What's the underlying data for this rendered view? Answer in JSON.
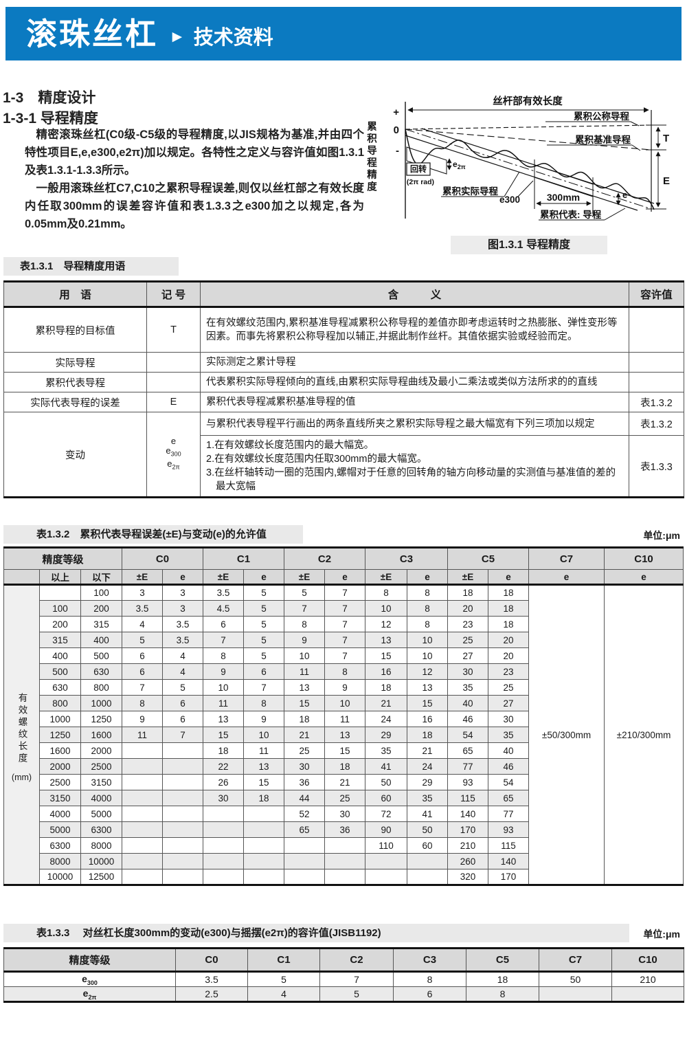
{
  "banner": {
    "title": "滚珠丝杠",
    "arrow": "►",
    "subtitle": "技术资料",
    "bg": "#0b7ac1"
  },
  "headings": {
    "h1": "1-3　精度设计",
    "h2": "1-3-1 导程精度"
  },
  "intro": {
    "p1": "精密滚珠丝杠(C0级-C5级的导程精度,以JIS规格为基准,并由四个特性项目E,e,e300,e2π)加以规定。各特性之定义与容许值如图1.3.1及表1.3.1-1.3.3所示。",
    "p2": "一般用滚珠丝杠C7,C10之累积导程误差,则仅以丝杠部之有效长度内任取300mm的误差容许值和表1.3.3之e300加之以规定,各为0.05mm及0.21mm。"
  },
  "figure": {
    "caption": "图1.3.1 导程精度",
    "labels": {
      "effective_length": "丝杆部有效长度",
      "y_axis": "累积导程精度",
      "plus": "+",
      "zero": "0",
      "minus": "-",
      "nominal": "累积公称导程",
      "reference": "累积基准导程",
      "actual": "累积实际导程",
      "representative": "累积代表: 导程",
      "rotation": "回转",
      "rotation_unit": "(2π rad)",
      "e2pi_base": "e",
      "e2pi_sub": "2π",
      "e300": "e300",
      "mm300": "300mm",
      "e": "e",
      "T": "T",
      "E": "E"
    }
  },
  "table131": {
    "title": "表1.3.1　导程精度用语",
    "headers": [
      "用　语",
      "记 号",
      "含　　　义",
      "容许值"
    ],
    "rows": [
      {
        "term": "累积导程的目标值",
        "symbol": "T",
        "meaning": "在有效螺纹范围内,累积基准导程减累积公称导程的差值亦即考虑运转时之热膨胀、弹性变形等因素。而事先将累积公称导程加以辅正,并据此制作丝杆。其值依据实验或经验而定。",
        "tolerance": ""
      },
      {
        "term": "实际导程",
        "symbol": "",
        "meaning": "实际测定之累计导程",
        "tolerance": ""
      },
      {
        "term": "累积代表导程",
        "symbol": "",
        "meaning": "代表累积实际导程倾向的直线,由累积实际导程曲线及最小二乘法或类似方法所求的的直线",
        "tolerance": ""
      },
      {
        "term": "实际代表导程的误差",
        "symbol": "E",
        "meaning": "累积代表导程减累积基准导程的值",
        "tolerance": "表1.3.2"
      }
    ],
    "variation_row": {
      "term": "变动",
      "symbols": [
        {
          "b": "e",
          "s": ""
        },
        {
          "b": "e",
          "s": "300"
        },
        {
          "b": "e",
          "s": "2π"
        }
      ],
      "meaning_a": "与累积代表导程平行画出的两条直线所夹之累积实际导程之最大幅宽有下列三项加以规定",
      "tolerance_a": "表1.3.2",
      "meaning_b": [
        "1.在有效螺纹长度范围内的最大幅宽。",
        "2.在有效螺纹长度范围内任取300mm的最大幅宽。",
        "3.在丝杆轴转动一圈的范围内,螺帽对于任意的回转角的轴方向移动量的实测值与基准值的差的最大宽幅"
      ],
      "tolerance_b": "表1.3.3"
    }
  },
  "table132": {
    "title": "表1.3.2　累积代表导程误差(±E)与变动(e)的允许值",
    "unit": "单位:μm",
    "grade_header": "精度等级",
    "col_groups": [
      "C0",
      "C1",
      "C2",
      "C3",
      "C5",
      "C7",
      "C10"
    ],
    "sub_over": "以上",
    "sub_under": "以下",
    "sub_pe": "±E",
    "sub_e": "e",
    "side_label": "有效螺纹长度",
    "side_unit": "(mm)",
    "c7_value": "±50/300mm",
    "c10_value": "±210/300mm",
    "rows": [
      [
        "",
        "100",
        "3",
        "3",
        "3.5",
        "5",
        "5",
        "7",
        "8",
        "8",
        "18",
        "18"
      ],
      [
        "100",
        "200",
        "3.5",
        "3",
        "4.5",
        "5",
        "7",
        "7",
        "10",
        "8",
        "20",
        "18"
      ],
      [
        "200",
        "315",
        "4",
        "3.5",
        "6",
        "5",
        "8",
        "7",
        "12",
        "8",
        "23",
        "18"
      ],
      [
        "315",
        "400",
        "5",
        "3.5",
        "7",
        "5",
        "9",
        "7",
        "13",
        "10",
        "25",
        "20"
      ],
      [
        "400",
        "500",
        "6",
        "4",
        "8",
        "5",
        "10",
        "7",
        "15",
        "10",
        "27",
        "20"
      ],
      [
        "500",
        "630",
        "6",
        "4",
        "9",
        "6",
        "11",
        "8",
        "16",
        "12",
        "30",
        "23"
      ],
      [
        "630",
        "800",
        "7",
        "5",
        "10",
        "7",
        "13",
        "9",
        "18",
        "13",
        "35",
        "25"
      ],
      [
        "800",
        "1000",
        "8",
        "6",
        "11",
        "8",
        "15",
        "10",
        "21",
        "15",
        "40",
        "27"
      ],
      [
        "1000",
        "1250",
        "9",
        "6",
        "13",
        "9",
        "18",
        "11",
        "24",
        "16",
        "46",
        "30"
      ],
      [
        "1250",
        "1600",
        "11",
        "7",
        "15",
        "10",
        "21",
        "13",
        "29",
        "18",
        "54",
        "35"
      ],
      [
        "1600",
        "2000",
        "",
        "",
        "18",
        "11",
        "25",
        "15",
        "35",
        "21",
        "65",
        "40"
      ],
      [
        "2000",
        "2500",
        "",
        "",
        "22",
        "13",
        "30",
        "18",
        "41",
        "24",
        "77",
        "46"
      ],
      [
        "2500",
        "3150",
        "",
        "",
        "26",
        "15",
        "36",
        "21",
        "50",
        "29",
        "93",
        "54"
      ],
      [
        "3150",
        "4000",
        "",
        "",
        "30",
        "18",
        "44",
        "25",
        "60",
        "35",
        "115",
        "65"
      ],
      [
        "4000",
        "5000",
        "",
        "",
        "",
        "",
        "52",
        "30",
        "72",
        "41",
        "140",
        "77"
      ],
      [
        "5000",
        "6300",
        "",
        "",
        "",
        "",
        "65",
        "36",
        "90",
        "50",
        "170",
        "93"
      ],
      [
        "6300",
        "8000",
        "",
        "",
        "",
        "",
        "",
        "",
        "110",
        "60",
        "210",
        "115"
      ],
      [
        "8000",
        "10000",
        "",
        "",
        "",
        "",
        "",
        "",
        "",
        "",
        "260",
        "140"
      ],
      [
        "10000",
        "12500",
        "",
        "",
        "",
        "",
        "",
        "",
        "",
        "",
        "320",
        "170"
      ]
    ]
  },
  "table133": {
    "title": "表1.3.3　 对丝杠长度300mm的变动(e300)与摇摆(e2π)的容许值(JISB1192)",
    "unit": "单位:μm",
    "grade_header": "精度等级",
    "cols": [
      "C0",
      "C1",
      "C2",
      "C3",
      "C5",
      "C7",
      "C10"
    ],
    "rows": [
      {
        "label": {
          "b": "e",
          "s": "300"
        },
        "values": [
          "3.5",
          "5",
          "7",
          "8",
          "18",
          "50",
          "210"
        ]
      },
      {
        "label": {
          "b": "e",
          "s": "2π"
        },
        "values": [
          "2.5",
          "4",
          "5",
          "6",
          "8",
          "",
          ""
        ]
      }
    ]
  }
}
